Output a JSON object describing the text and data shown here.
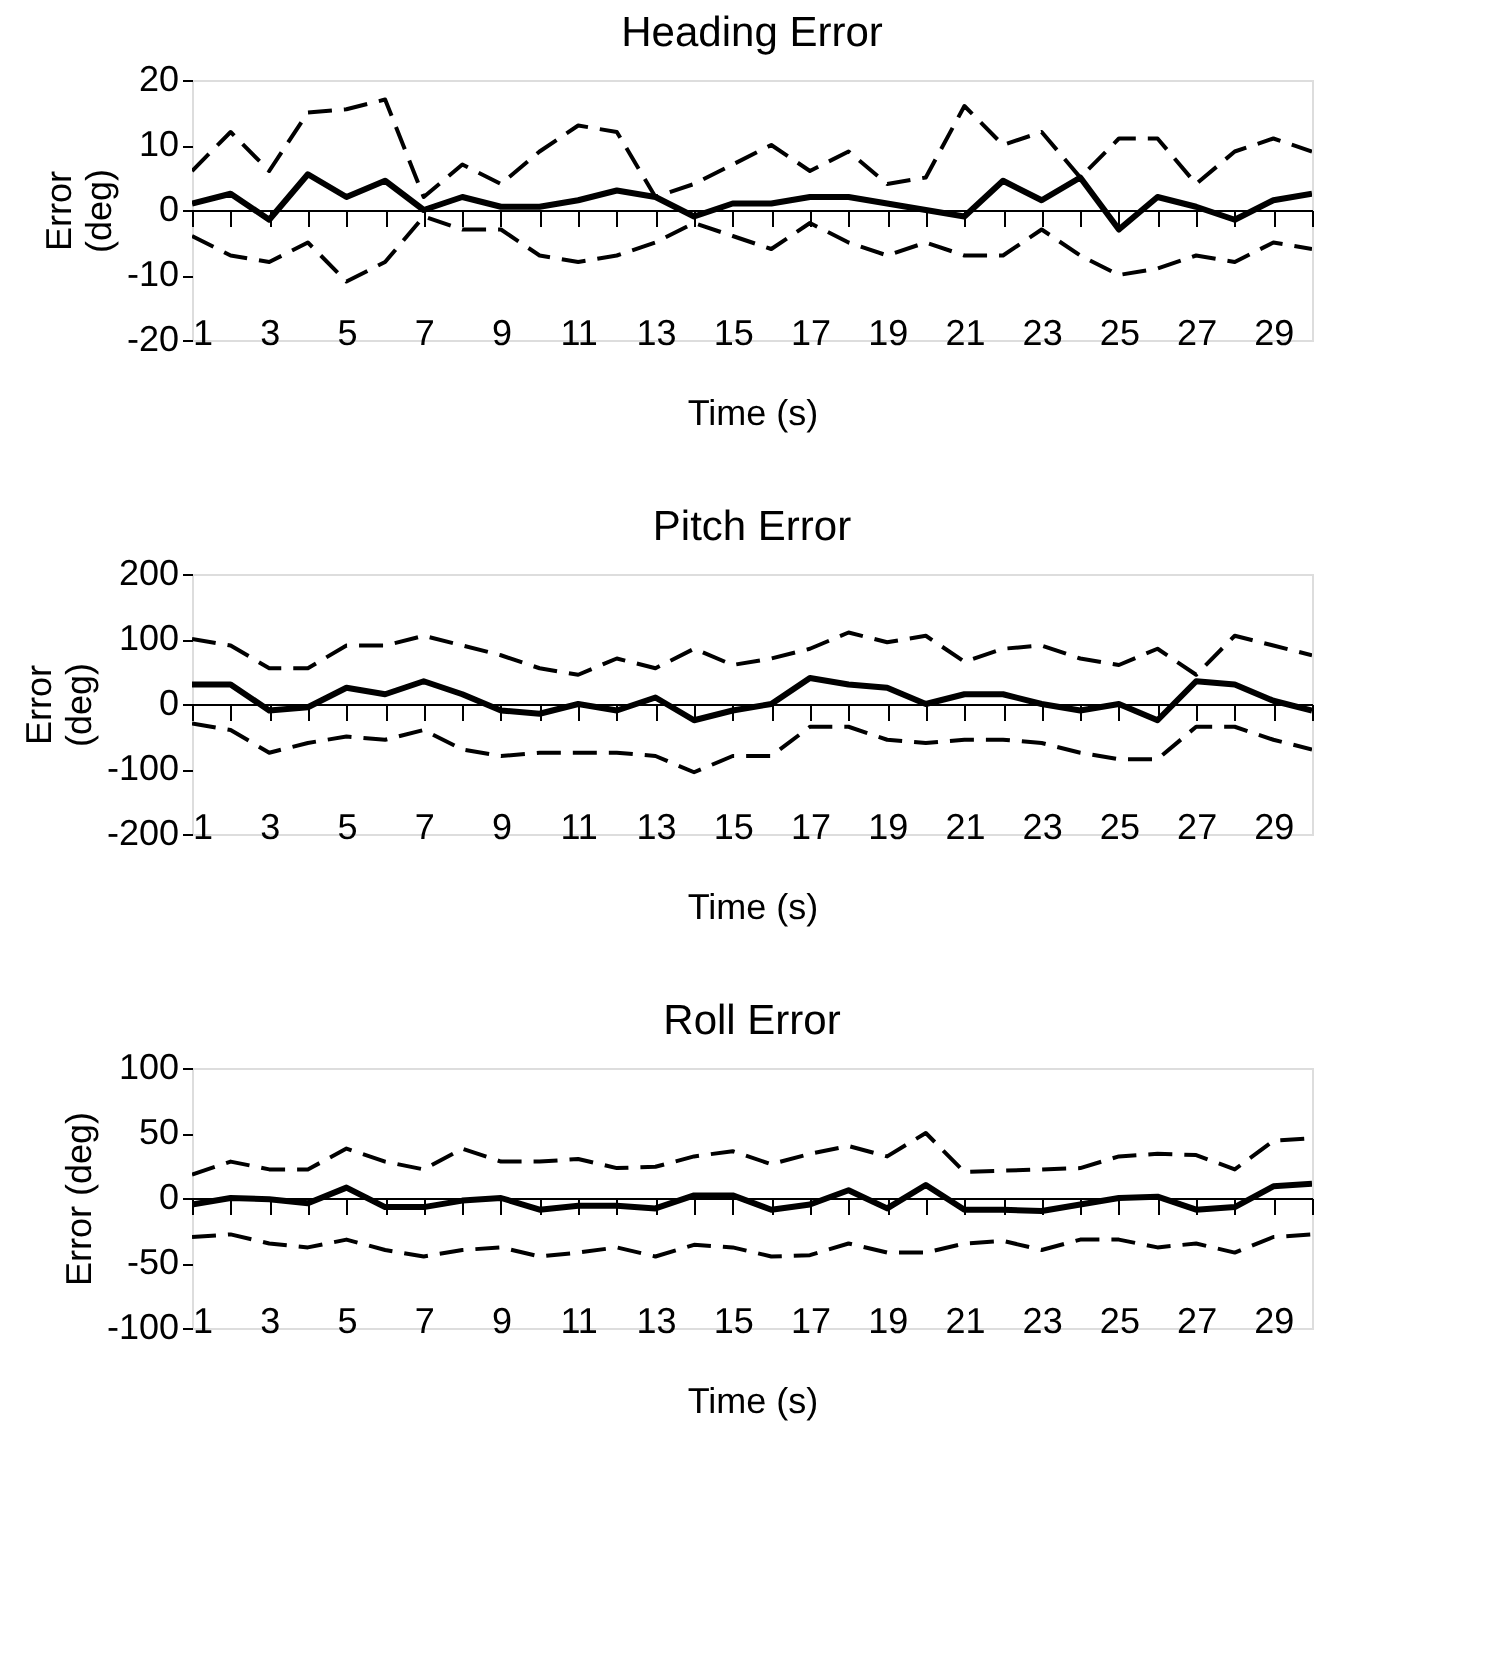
{
  "chart_data": [
    {
      "type": "line",
      "title": "Heading Error",
      "xlabel": "Time (s)",
      "ylabel": "Error\n(deg)",
      "x": [
        1,
        2,
        3,
        4,
        5,
        6,
        7,
        8,
        9,
        10,
        11,
        12,
        13,
        14,
        15,
        16,
        17,
        18,
        19,
        20,
        21,
        22,
        23,
        24,
        25,
        26,
        27,
        28,
        29,
        30
      ],
      "xlim": [
        1,
        30
      ],
      "xticks": [
        1,
        {
          "value": 2,
          "label": null
        },
        3,
        {
          "value": 4,
          "label": null
        },
        5,
        {
          "value": 6,
          "label": null
        },
        7,
        {
          "value": 8,
          "label": null
        },
        9,
        {
          "value": 10,
          "label": null
        },
        11,
        {
          "value": 12,
          "label": null
        },
        13,
        {
          "value": 14,
          "label": null
        },
        15,
        {
          "value": 16,
          "label": null
        },
        17,
        {
          "value": 18,
          "label": null
        },
        19,
        {
          "value": 20,
          "label": null
        },
        21,
        {
          "value": 22,
          "label": null
        },
        23,
        {
          "value": 24,
          "label": null
        },
        25,
        {
          "value": 26,
          "label": null
        },
        27,
        {
          "value": 28,
          "label": null
        },
        29,
        {
          "value": 30,
          "label": null
        }
      ],
      "ylim": [
        -20,
        20
      ],
      "yticks": [
        -20,
        -10,
        0,
        10,
        20
      ],
      "series": [
        {
          "color": "#000000",
          "line_style": "dashed",
          "values": [
            6,
            12,
            6,
            15,
            15.5,
            17,
            2,
            7,
            4,
            9,
            13,
            12,
            2,
            4,
            7,
            10,
            6,
            9,
            4,
            5,
            16,
            10,
            12,
            5,
            11,
            11,
            4,
            9,
            11,
            9
          ]
        },
        {
          "color": "#000000",
          "line_style": "solid",
          "values": [
            1,
            2.5,
            -1.5,
            5.5,
            2,
            4.5,
            0,
            2,
            0.5,
            0.5,
            1.5,
            3,
            2,
            -1,
            1,
            1,
            2,
            2,
            1,
            0,
            -1,
            4.5,
            1.5,
            5,
            -3,
            2,
            0.5,
            -1.5,
            1.5,
            2.5
          ]
        },
        {
          "color": "#000000",
          "line_style": "dashed",
          "values": [
            -4,
            -7,
            -8,
            -5,
            -11,
            -8,
            -1,
            -3,
            -3,
            -7,
            -8,
            -7,
            -5,
            -2,
            -4,
            -6,
            -2,
            -5,
            -7,
            -5,
            -7,
            -7,
            -3,
            -7,
            -10,
            -9,
            -7,
            -8,
            -5,
            -6
          ]
        }
      ]
    },
    {
      "type": "line",
      "title": "Pitch Error",
      "xlabel": "Time (s)",
      "ylabel": "Error\n(deg)",
      "x": [
        1,
        2,
        3,
        4,
        5,
        6,
        7,
        8,
        9,
        10,
        11,
        12,
        13,
        14,
        15,
        16,
        17,
        18,
        19,
        20,
        21,
        22,
        23,
        24,
        25,
        26,
        27,
        28,
        29,
        30
      ],
      "xlim": [
        1,
        30
      ],
      "xticks": [
        1,
        {
          "value": 2,
          "label": null
        },
        3,
        {
          "value": 4,
          "label": null
        },
        5,
        {
          "value": 6,
          "label": null
        },
        7,
        {
          "value": 8,
          "label": null
        },
        9,
        {
          "value": 10,
          "label": null
        },
        11,
        {
          "value": 12,
          "label": null
        },
        13,
        {
          "value": 14,
          "label": null
        },
        15,
        {
          "value": 16,
          "label": null
        },
        17,
        {
          "value": 18,
          "label": null
        },
        19,
        {
          "value": 20,
          "label": null
        },
        21,
        {
          "value": 22,
          "label": null
        },
        23,
        {
          "value": 24,
          "label": null
        },
        25,
        {
          "value": 26,
          "label": null
        },
        27,
        {
          "value": 28,
          "label": null
        },
        29,
        {
          "value": 30,
          "label": null
        }
      ],
      "ylim": [
        -200,
        200
      ],
      "yticks": [
        -200,
        -100,
        0,
        100,
        200
      ],
      "series": [
        {
          "color": "#000000",
          "line_style": "dashed",
          "values": [
            100,
            90,
            55,
            55,
            90,
            90,
            105,
            90,
            75,
            55,
            45,
            70,
            55,
            85,
            60,
            70,
            85,
            110,
            95,
            105,
            65,
            85,
            90,
            70,
            60,
            85,
            45,
            105,
            90,
            75
          ]
        },
        {
          "color": "#000000",
          "line_style": "solid",
          "values": [
            30,
            30,
            -10,
            -5,
            25,
            15,
            35,
            15,
            -10,
            -15,
            0,
            -10,
            10,
            -25,
            -10,
            0,
            40,
            30,
            25,
            0,
            15,
            15,
            0,
            -10,
            0,
            -25,
            35,
            30,
            5,
            -10
          ]
        },
        {
          "color": "#000000",
          "line_style": "dashed",
          "values": [
            -30,
            -40,
            -75,
            -60,
            -50,
            -55,
            -40,
            -70,
            -80,
            -75,
            -75,
            -75,
            -80,
            -105,
            -80,
            -80,
            -35,
            -35,
            -55,
            -60,
            -55,
            -55,
            -60,
            -75,
            -85,
            -85,
            -35,
            -35,
            -55,
            -70
          ]
        }
      ]
    },
    {
      "type": "line",
      "title": "Roll Error",
      "xlabel": "Time (s)",
      "ylabel": "Error (deg)",
      "x": [
        1,
        2,
        3,
        4,
        5,
        6,
        7,
        8,
        9,
        10,
        11,
        12,
        13,
        14,
        15,
        16,
        17,
        18,
        19,
        20,
        21,
        22,
        23,
        24,
        25,
        26,
        27,
        28,
        29,
        30
      ],
      "xlim": [
        1,
        30
      ],
      "xticks": [
        1,
        {
          "value": 2,
          "label": null
        },
        3,
        {
          "value": 4,
          "label": null
        },
        5,
        {
          "value": 6,
          "label": null
        },
        7,
        {
          "value": 8,
          "label": null
        },
        9,
        {
          "value": 10,
          "label": null
        },
        11,
        {
          "value": 12,
          "label": null
        },
        13,
        {
          "value": 14,
          "label": null
        },
        15,
        {
          "value": 16,
          "label": null
        },
        17,
        {
          "value": 18,
          "label": null
        },
        19,
        {
          "value": 20,
          "label": null
        },
        21,
        {
          "value": 22,
          "label": null
        },
        23,
        {
          "value": 24,
          "label": null
        },
        25,
        {
          "value": 26,
          "label": null
        },
        27,
        {
          "value": 28,
          "label": null
        },
        29,
        {
          "value": 30,
          "label": null
        }
      ],
      "ylim": [
        -100,
        100
      ],
      "yticks": [
        -100,
        -50,
        0,
        50,
        100
      ],
      "series": [
        {
          "color": "#000000",
          "line_style": "dashed",
          "values": [
            18,
            28,
            22,
            22,
            38,
            28,
            22,
            38,
            28,
            28,
            30,
            23,
            24,
            32,
            36,
            26,
            34,
            40,
            32,
            50,
            20,
            21,
            22,
            23,
            32,
            34,
            33,
            22,
            44,
            46
          ]
        },
        {
          "color": "#000000",
          "line_style": "solid",
          "values": [
            -5,
            0,
            -1,
            -4,
            8,
            -7,
            -7,
            -2,
            0,
            -9,
            -6,
            -6,
            -8,
            2,
            2,
            -9,
            -5,
            6,
            -8,
            10,
            -9,
            -9,
            -10,
            -5,
            0,
            1,
            -9,
            -7,
            9,
            11
          ]
        },
        {
          "color": "#000000",
          "line_style": "dashed",
          "values": [
            -30,
            -28,
            -35,
            -38,
            -32,
            -40,
            -45,
            -40,
            -38,
            -45,
            -42,
            -38,
            -45,
            -36,
            -38,
            -45,
            -44,
            -35,
            -42,
            -42,
            -35,
            -33,
            -40,
            -32,
            -32,
            -38,
            -35,
            -42,
            -30,
            -28
          ]
        }
      ]
    }
  ]
}
